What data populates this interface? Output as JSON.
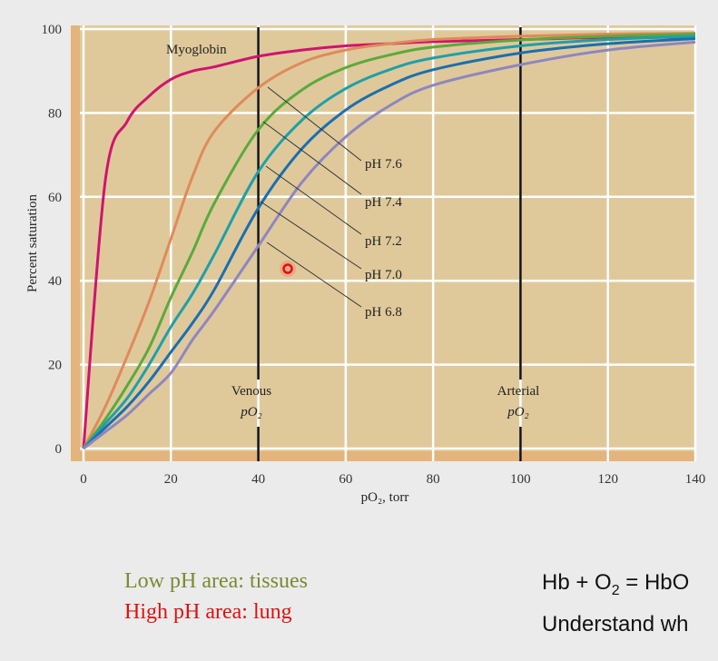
{
  "chart_data": {
    "type": "line",
    "xlabel": "pO₂, torr",
    "ylabel": "Percent saturation",
    "xlim": [
      0,
      140
    ],
    "ylim": [
      0,
      100
    ],
    "xticks": [
      "0",
      "20",
      "40",
      "60",
      "80",
      "100",
      "120",
      "140"
    ],
    "yticks": [
      "0",
      "20",
      "40",
      "60",
      "80",
      "100"
    ],
    "grid": true,
    "x": [
      0,
      5,
      10,
      15,
      20,
      25,
      30,
      40,
      50,
      60,
      70,
      80,
      100,
      120,
      140
    ],
    "series": [
      {
        "name": "Myoglobin",
        "color": "#d0146e",
        "values": [
          0,
          64,
          78,
          84,
          88,
          90,
          91,
          93.5,
          95,
          96,
          96.5,
          97,
          97.5,
          98,
          98
        ]
      },
      {
        "name": "pH 7.6",
        "color": "#e08a5a",
        "values": [
          0,
          10,
          22,
          35,
          50,
          65,
          75.7,
          86,
          92,
          95,
          96.5,
          97.5,
          98.3,
          98.8,
          99
        ]
      },
      {
        "name": "pH 7.4",
        "color": "#5aaa3c",
        "values": [
          0,
          7,
          15,
          24,
          36,
          47,
          58.6,
          76,
          85.5,
          90.8,
          93.8,
          95.7,
          97.4,
          98.3,
          98.8
        ]
      },
      {
        "name": "pH 7.2",
        "color": "#1ea0a8",
        "values": [
          0,
          6,
          12,
          20,
          29,
          37,
          46.4,
          66,
          78.3,
          85.8,
          90.3,
          93.1,
          96,
          97.5,
          98.3
        ]
      },
      {
        "name": "pH 7.0",
        "color": "#1a6fb0",
        "values": [
          0,
          5,
          10,
          16,
          23,
          30,
          38,
          57.3,
          71.5,
          80.7,
          86.5,
          90.3,
          94.3,
          96.5,
          97.7
        ]
      },
      {
        "name": "pH 6.8",
        "color": "#8e86c0",
        "values": [
          0,
          4,
          8,
          13,
          18,
          26,
          33,
          48.3,
          63.5,
          74.3,
          81.7,
          86.6,
          91.5,
          95,
          96.9
        ]
      }
    ],
    "reference_lines": [
      {
        "x": 40,
        "label_line1": "Venous",
        "label_line2": "pO₂"
      },
      {
        "x": 100,
        "label_line1": "Arterial",
        "label_line2": "pO₂"
      }
    ],
    "colors": {
      "plot_background": "#dfc99b",
      "stripe": "#e3b47c",
      "grid": "#ffffff"
    }
  },
  "notes": {
    "low_ph": "Low pH area: tissues",
    "low_ph_color": "#7a8a32",
    "high_ph": "High pH area: lung",
    "high_ph_color": "#e01010"
  },
  "right_text": {
    "equation_left": "Hb + O",
    "equation_sub": "2",
    "equation_right": " = HbO",
    "line2": "Understand wh"
  }
}
